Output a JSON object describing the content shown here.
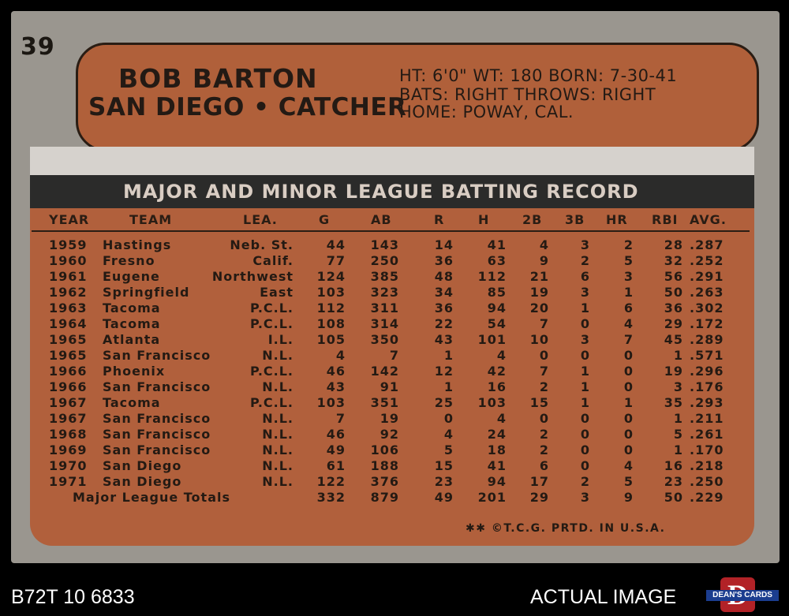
{
  "card": {
    "number": "39",
    "name": "BOB BARTON",
    "team_position": "SAN DIEGO • CATCHER",
    "bio_line1": "HT: 6'0\"   WT: 180   BORN: 7-30-41",
    "bio_line2": "BATS: RIGHT          THROWS: RIGHT",
    "bio_line3": "HOME: POWAY, CAL.",
    "record_title": "MAJOR AND MINOR LEAGUE BATTING RECORD",
    "columns": [
      "YEAR",
      "TEAM",
      "LEA.",
      "G",
      "AB",
      "R",
      "H",
      "2B",
      "3B",
      "HR",
      "RBI",
      "AVG."
    ],
    "rows": [
      [
        "1959",
        "Hastings",
        "Neb. St.",
        "44",
        "143",
        "14",
        "41",
        "4",
        "3",
        "2",
        "28",
        ".287"
      ],
      [
        "1960",
        "Fresno",
        "Calif.",
        "77",
        "250",
        "36",
        "63",
        "9",
        "2",
        "5",
        "32",
        ".252"
      ],
      [
        "1961",
        "Eugene",
        "Northwest",
        "124",
        "385",
        "48",
        "112",
        "21",
        "6",
        "3",
        "56",
        ".291"
      ],
      [
        "1962",
        "Springfield",
        "East",
        "103",
        "323",
        "34",
        "85",
        "19",
        "3",
        "1",
        "50",
        ".263"
      ],
      [
        "1963",
        "Tacoma",
        "P.C.L.",
        "112",
        "311",
        "36",
        "94",
        "20",
        "1",
        "6",
        "36",
        ".302"
      ],
      [
        "1964",
        "Tacoma",
        "P.C.L.",
        "108",
        "314",
        "22",
        "54",
        "7",
        "0",
        "4",
        "29",
        ".172"
      ],
      [
        "1965",
        "Atlanta",
        "I.L.",
        "105",
        "350",
        "43",
        "101",
        "10",
        "3",
        "7",
        "45",
        ".289"
      ],
      [
        "1965",
        "San Francisco",
        "N.L.",
        "4",
        "7",
        "1",
        "4",
        "0",
        "0",
        "0",
        "1",
        ".571"
      ],
      [
        "1966",
        "Phoenix",
        "P.C.L.",
        "46",
        "142",
        "12",
        "42",
        "7",
        "1",
        "0",
        "19",
        ".296"
      ],
      [
        "1966",
        "San Francisco",
        "N.L.",
        "43",
        "91",
        "1",
        "16",
        "2",
        "1",
        "0",
        "3",
        ".176"
      ],
      [
        "1967",
        "Tacoma",
        "P.C.L.",
        "103",
        "351",
        "25",
        "103",
        "15",
        "1",
        "1",
        "35",
        ".293"
      ],
      [
        "1967",
        "San Francisco",
        "N.L.",
        "7",
        "19",
        "0",
        "4",
        "0",
        "0",
        "0",
        "1",
        ".211"
      ],
      [
        "1968",
        "San Francisco",
        "N.L.",
        "46",
        "92",
        "4",
        "24",
        "2",
        "0",
        "0",
        "5",
        ".261"
      ],
      [
        "1969",
        "San Francisco",
        "N.L.",
        "49",
        "106",
        "5",
        "18",
        "2",
        "0",
        "0",
        "1",
        ".170"
      ],
      [
        "1970",
        "San Diego",
        "N.L.",
        "61",
        "188",
        "15",
        "41",
        "6",
        "0",
        "4",
        "16",
        ".218"
      ],
      [
        "1971",
        "San Diego",
        "N.L.",
        "122",
        "376",
        "23",
        "94",
        "17",
        "2",
        "5",
        "23",
        ".250"
      ]
    ],
    "totals": {
      "label": "Major League Totals",
      "values": [
        "332",
        "879",
        "49",
        "201",
        "29",
        "3",
        "9",
        "50",
        ".229"
      ]
    },
    "footer": "✱✱ ©T.C.G. PRTD. IN U.S.A."
  },
  "overlay": {
    "inventory_id": "B72T 10 6833",
    "actual_image": "ACTUAL IMAGE",
    "logo_text": "DEAN'S CARDS",
    "logo_letter": "D"
  },
  "colors": {
    "card_border": "#9a968f",
    "banner": "#b0603a",
    "stats_panel": "#b1603c",
    "title_bar": "#2b2b2a",
    "ink": "#241a13"
  }
}
